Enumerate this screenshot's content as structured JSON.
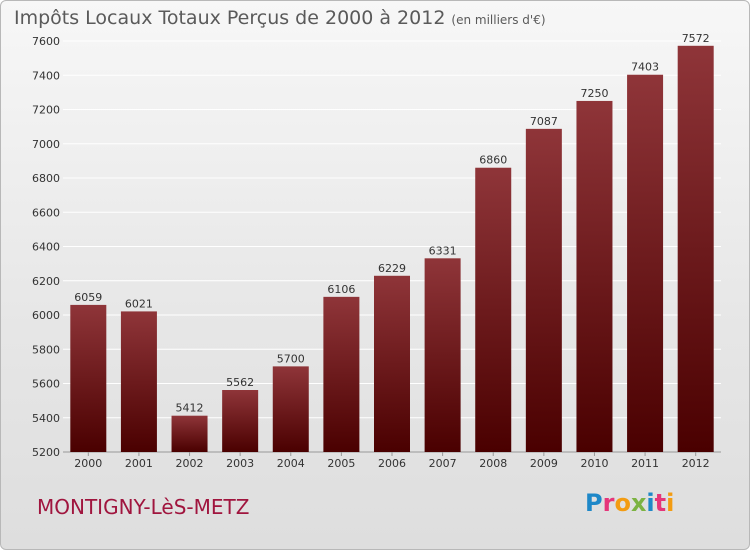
{
  "header": {
    "title": "Impôts Locaux Totaux Perçus de 2000 à 2012",
    "subtitle": "(en milliers d'€)"
  },
  "footer": {
    "city": "MONTIGNY-LèS-METZ",
    "brand": "Proxiti",
    "brand_colors": [
      "#1e88c8",
      "#e5357a",
      "#f39c12",
      "#7cb342",
      "#1e88c8",
      "#e5357a",
      "#f39c12"
    ]
  },
  "colors": {
    "bar_top": "#8f3539",
    "bar_bottom": "#4a0000",
    "axis_text": "#333333",
    "grid": "#ffffff"
  },
  "chart_data": {
    "type": "bar",
    "title": "Impôts Locaux Totaux Perçus de 2000 à 2012",
    "xlabel": "",
    "ylabel": "",
    "categories": [
      "2000",
      "2001",
      "2002",
      "2003",
      "2004",
      "2005",
      "2006",
      "2007",
      "2008",
      "2009",
      "2010",
      "2011",
      "2012"
    ],
    "values": [
      6059,
      6021,
      5412,
      5562,
      5700,
      6106,
      6229,
      6331,
      6860,
      7087,
      7250,
      7403,
      7572
    ],
    "ylim": [
      5200,
      7600
    ],
    "yticks": [
      5200,
      5400,
      5600,
      5800,
      6000,
      6200,
      6400,
      6600,
      6800,
      7000,
      7200,
      7400,
      7600
    ],
    "grid": true,
    "data_labels": true
  }
}
